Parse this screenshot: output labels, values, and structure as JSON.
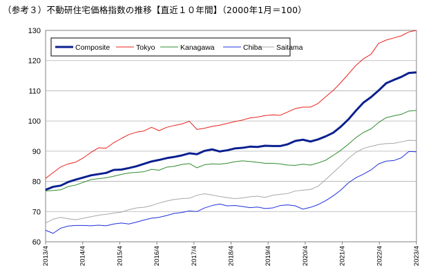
{
  "chart_data": {
    "type": "line",
    "title": "（参考３）不動研住宅価格指数の推移【直近１０年間】（2000年1月＝100）",
    "ylim": [
      60,
      130
    ],
    "yticks": [
      60,
      70,
      80,
      90,
      100,
      110,
      120,
      130
    ],
    "x_start": "2013/4",
    "x_end": "2023/4",
    "xticks": [
      "2013/4",
      "2014/4",
      "2015/4",
      "2016/4",
      "2017/4",
      "2018/4",
      "2019/4",
      "2020/4",
      "2021/4",
      "2022/4",
      "2023/4"
    ],
    "legend": "top-left",
    "grid": true,
    "series": [
      {
        "name": "Composite",
        "color": "#0a1f8f",
        "width": 3,
        "values": [
          77.2,
          78.2,
          78.6,
          79.8,
          80.6,
          81.3,
          82.0,
          82.4,
          82.8,
          83.8,
          83.9,
          84.4,
          85.0,
          85.8,
          86.6,
          87.1,
          87.7,
          88.1,
          88.6,
          89.3,
          89.0,
          90.1,
          90.6,
          89.9,
          90.3,
          90.9,
          91.1,
          91.5,
          91.4,
          91.8,
          91.7,
          91.7,
          92.3,
          93.4,
          93.8,
          93.2,
          93.9,
          94.9,
          96.1,
          98.1,
          100.5,
          103.4,
          106.1,
          107.9,
          110.1,
          112.5,
          113.6,
          114.6,
          115.9,
          116.1
        ]
      },
      {
        "name": "Tokyo",
        "color": "#e8201c",
        "width": 1,
        "values": [
          81.0,
          82.9,
          84.8,
          85.8,
          86.4,
          87.8,
          89.6,
          91.1,
          91.0,
          92.8,
          94.2,
          95.5,
          96.3,
          96.7,
          97.9,
          96.8,
          97.9,
          98.5,
          99.0,
          99.9,
          97.2,
          97.6,
          98.2,
          98.6,
          99.2,
          99.8,
          100.3,
          101.0,
          101.3,
          101.8,
          102.0,
          101.9,
          103.0,
          104.1,
          104.6,
          104.6,
          105.8,
          108.0,
          110.1,
          112.7,
          115.5,
          118.4,
          120.6,
          122.1,
          125.7,
          126.8,
          127.5,
          128.2,
          129.5,
          130.0
        ]
      },
      {
        "name": "Kanagawa",
        "color": "#2f8a2f",
        "width": 1,
        "values": [
          76.8,
          77.0,
          77.2,
          78.3,
          78.8,
          79.7,
          80.6,
          80.9,
          81.2,
          81.7,
          82.3,
          82.8,
          83.0,
          83.2,
          84.0,
          83.7,
          84.7,
          85.0,
          85.6,
          85.9,
          84.5,
          85.5,
          85.8,
          85.7,
          86.0,
          86.5,
          86.8,
          86.6,
          86.3,
          86.0,
          86.0,
          85.8,
          85.4,
          85.3,
          85.7,
          85.4,
          86.1,
          87.0,
          88.6,
          90.3,
          92.3,
          94.5,
          96.2,
          97.4,
          99.5,
          101.1,
          101.7,
          102.2,
          103.3,
          103.5
        ]
      },
      {
        "name": "Chiba",
        "color": "#1f2fdc",
        "width": 1,
        "values": [
          63.8,
          62.8,
          64.5,
          65.2,
          65.4,
          65.4,
          65.3,
          65.5,
          65.3,
          65.9,
          66.2,
          65.9,
          66.5,
          67.2,
          67.8,
          68.1,
          68.7,
          69.4,
          69.7,
          70.2,
          70.0,
          71.2,
          72.0,
          72.5,
          71.9,
          72.0,
          71.7,
          71.3,
          71.5,
          71.0,
          71.2,
          72.0,
          72.2,
          71.9,
          70.8,
          71.4,
          72.3,
          73.6,
          75.2,
          77.1,
          79.5,
          81.2,
          82.4,
          83.8,
          85.8,
          86.7,
          86.9,
          87.8,
          89.9,
          89.8
        ]
      },
      {
        "name": "Saitama",
        "color": "#a6a6a6",
        "width": 1,
        "values": [
          66.2,
          67.5,
          68.1,
          67.6,
          67.3,
          67.8,
          68.3,
          68.8,
          69.1,
          69.5,
          69.8,
          70.6,
          71.2,
          71.4,
          72.0,
          72.8,
          73.5,
          74.0,
          74.3,
          74.4,
          75.4,
          75.9,
          75.5,
          75.0,
          74.6,
          74.3,
          74.5,
          74.9,
          75.1,
          74.7,
          75.4,
          75.7,
          76.0,
          76.8,
          77.1,
          77.3,
          78.4,
          80.6,
          82.9,
          85.2,
          87.6,
          89.6,
          90.9,
          91.6,
          92.2,
          92.5,
          92.6,
          93.1,
          93.6,
          93.5
        ]
      }
    ]
  }
}
